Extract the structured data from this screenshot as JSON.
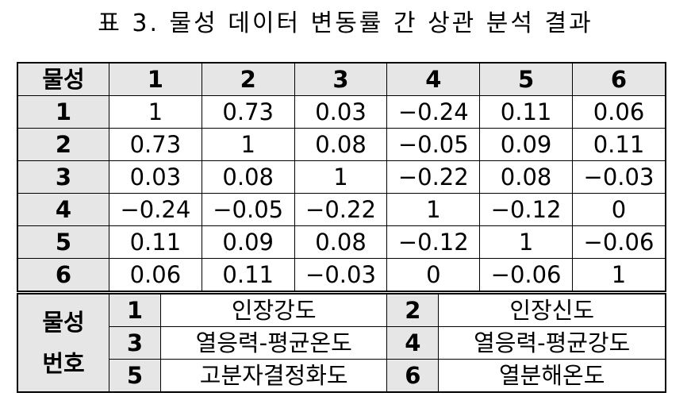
{
  "title": "표 3. 물성 데이터 변동률 간 상관 분석 결과",
  "corr_table": {
    "corner": "물성",
    "columns": [
      "1",
      "2",
      "3",
      "4",
      "5",
      "6"
    ],
    "rows": [
      {
        "label": "1",
        "values": [
          "1",
          "0.73",
          "0.03",
          "−0.24",
          "0.11",
          "0.06"
        ]
      },
      {
        "label": "2",
        "values": [
          "0.73",
          "1",
          "0.08",
          "−0.05",
          "0.09",
          "0.11"
        ]
      },
      {
        "label": "3",
        "values": [
          "0.03",
          "0.08",
          "1",
          "−0.22",
          "0.08",
          "−0.03"
        ]
      },
      {
        "label": "4",
        "values": [
          "−0.24",
          "−0.05",
          "−0.22",
          "1",
          "−0.12",
          "0"
        ]
      },
      {
        "label": "5",
        "values": [
          "0.11",
          "0.09",
          "0.08",
          "−0.12",
          "1",
          "−0.06"
        ]
      },
      {
        "label": "6",
        "values": [
          "0.06",
          "0.11",
          "−0.03",
          "0",
          "−0.06",
          "1"
        ]
      }
    ]
  },
  "legend": {
    "header_line1": "물성",
    "header_line2": "번호",
    "rows": [
      [
        {
          "num": "1",
          "name": "인장강도"
        },
        {
          "num": "2",
          "name": "인장신도"
        }
      ],
      [
        {
          "num": "3",
          "name": "열응력-평균온도"
        },
        {
          "num": "4",
          "name": "열응력-평균강도"
        }
      ],
      [
        {
          "num": "5",
          "name": "고분자결정화도"
        },
        {
          "num": "6",
          "name": "열분해온도"
        }
      ]
    ]
  }
}
